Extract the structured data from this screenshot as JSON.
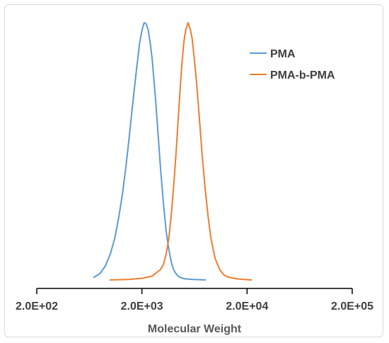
{
  "chart_data": {
    "type": "line",
    "title": "",
    "xlabel": "Molecular Weight",
    "ylabel": "",
    "x_scale": "log",
    "xlim": [
      200,
      200000
    ],
    "ylim": [
      0,
      1
    ],
    "x_ticks": [
      200,
      2000,
      20000,
      200000
    ],
    "x_tick_labels": [
      "2.0E+02",
      "2.0E+03",
      "2.0E+04",
      "2.0E+05"
    ],
    "grid": false,
    "legend_position": "top-right",
    "series": [
      {
        "name": "PMA",
        "color": "#5b9bd5",
        "x": [
          700,
          800,
          900,
          1000,
          1100,
          1200,
          1300,
          1400,
          1500,
          1600,
          1700,
          1800,
          1900,
          2000,
          2100,
          2200,
          2300,
          2400,
          2500,
          2600,
          2700,
          2800,
          2900,
          3000,
          3200,
          3400,
          3600,
          3800,
          4000,
          4200,
          4500,
          5000,
          6000,
          7000,
          8000
        ],
        "y": [
          0.01,
          0.025,
          0.055,
          0.1,
          0.16,
          0.24,
          0.33,
          0.43,
          0.54,
          0.65,
          0.75,
          0.84,
          0.92,
          0.97,
          1.0,
          0.995,
          0.97,
          0.92,
          0.86,
          0.78,
          0.7,
          0.61,
          0.52,
          0.44,
          0.3,
          0.19,
          0.12,
          0.07,
          0.04,
          0.025,
          0.012,
          0.005,
          0.002,
          0.001,
          0.0
        ]
      },
      {
        "name": "PMA-b-PMA",
        "color": "#ed7d31",
        "x": [
          1000,
          1500,
          2000,
          2500,
          3000,
          3200,
          3400,
          3600,
          3800,
          4000,
          4200,
          4400,
          4600,
          4800,
          5000,
          5200,
          5500,
          5800,
          6000,
          6300,
          6600,
          7000,
          7500,
          8000,
          8500,
          9000,
          9500,
          10000,
          11000,
          12000,
          13000,
          15000,
          17000,
          20000,
          22000
        ],
        "y": [
          0.0,
          0.002,
          0.006,
          0.015,
          0.04,
          0.06,
          0.1,
          0.16,
          0.25,
          0.36,
          0.48,
          0.61,
          0.73,
          0.84,
          0.92,
          0.97,
          1.0,
          0.97,
          0.94,
          0.86,
          0.77,
          0.64,
          0.48,
          0.35,
          0.25,
          0.17,
          0.12,
          0.08,
          0.04,
          0.02,
          0.012,
          0.006,
          0.003,
          0.001,
          0.0
        ]
      }
    ]
  }
}
